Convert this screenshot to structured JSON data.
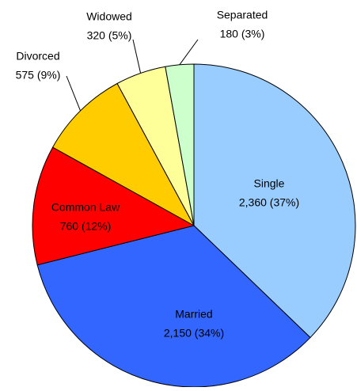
{
  "chart_data": {
    "type": "pie",
    "categories": [
      "Single",
      "Married",
      "Common Law",
      "Divorced",
      "Widowed",
      "Separated"
    ],
    "values": [
      2360,
      2150,
      760,
      575,
      320,
      180
    ],
    "value_labels": [
      "2,360 (37%)",
      "2,150 (34%)",
      "760 (12%)",
      "575 (9%)",
      "320 (5%)",
      "180 (3%)"
    ],
    "colors": [
      "#99ccff",
      "#3366ff",
      "#ff0000",
      "#ffcc00",
      "#ffff99",
      "#ccffcc"
    ]
  }
}
